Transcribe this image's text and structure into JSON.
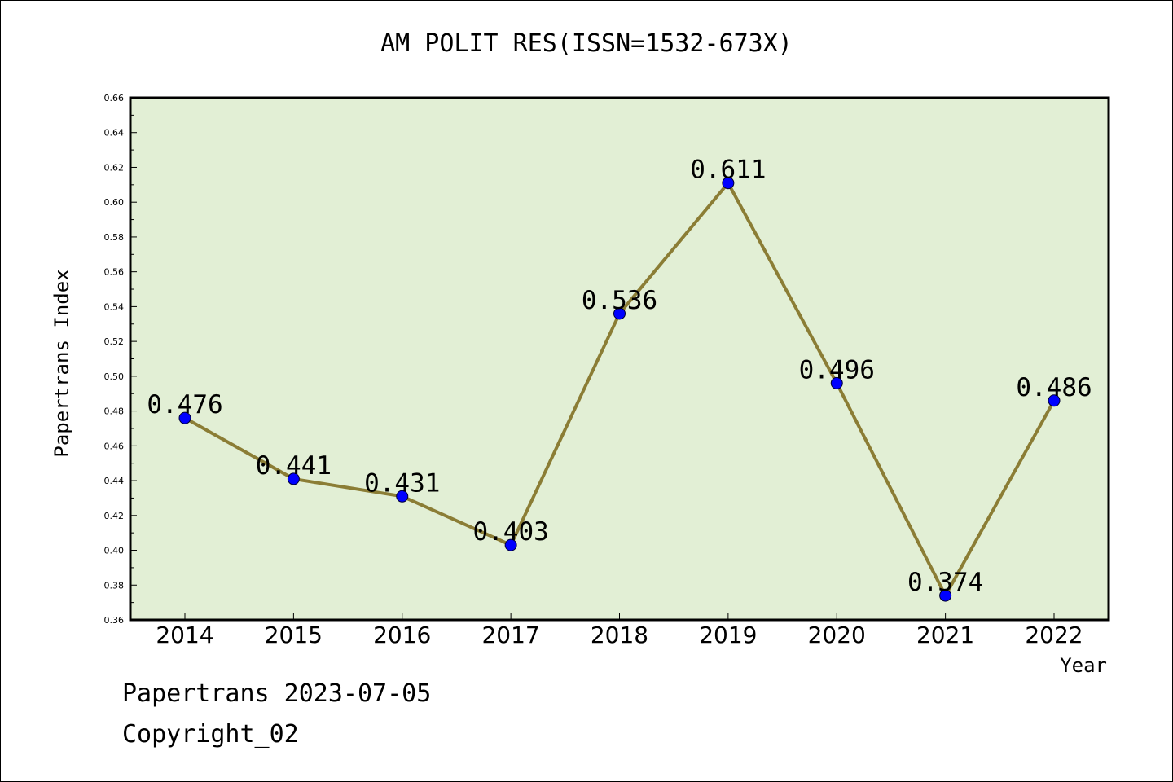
{
  "chart_data": {
    "type": "line",
    "title": "AM POLIT RES(ISSN=1532-673X)",
    "xlabel": "Year",
    "ylabel": "Papertrans Index",
    "categories": [
      "2014",
      "2015",
      "2016",
      "2017",
      "2018",
      "2019",
      "2020",
      "2021",
      "2022"
    ],
    "values": [
      0.476,
      0.441,
      0.431,
      0.403,
      0.536,
      0.611,
      0.496,
      0.374,
      0.486
    ],
    "data_labels": [
      "0.476",
      "0.441",
      "0.431",
      "0.403",
      "0.536",
      "0.611",
      "0.496",
      "0.374",
      "0.486"
    ],
    "ylim": [
      0.36,
      0.66
    ],
    "yticks": [
      "0.36",
      "0.38",
      "0.40",
      "0.42",
      "0.44",
      "0.46",
      "0.48",
      "0.50",
      "0.52",
      "0.54",
      "0.56",
      "0.58",
      "0.60",
      "0.62",
      "0.64",
      "0.66"
    ],
    "grid": false,
    "legend": "none",
    "colors": {
      "plot_background": "#e2efd5",
      "line": "#8b7d35",
      "marker": "#0000ff",
      "axes": "#000000"
    }
  },
  "footer": {
    "line1": "Papertrans 2023-07-05",
    "line2": "Copyright_02"
  }
}
